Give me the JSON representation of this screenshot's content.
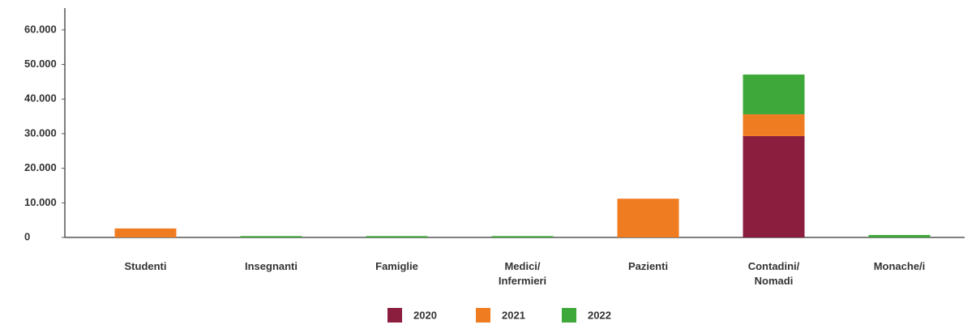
{
  "chart_data": {
    "type": "stacked_bar",
    "categories": [
      "Studenti",
      "Insegnanti",
      "Famiglie",
      "Medici/\nInfermieri",
      "Pazienti",
      "Contadini/\nNomadi",
      "Monache/i"
    ],
    "series": [
      {
        "name": "2020",
        "color": "#8b1e3f",
        "values": [
          0,
          0,
          0,
          0,
          0,
          29300,
          0
        ]
      },
      {
        "name": "2021",
        "color": "#f07c22",
        "values": [
          2600,
          0,
          0,
          0,
          11200,
          6300,
          0
        ]
      },
      {
        "name": "2022",
        "color": "#3fa83b",
        "values": [
          0,
          400,
          400,
          400,
          0,
          11500,
          700
        ]
      }
    ],
    "ylim": [
      0,
      66300
    ],
    "yticks": [
      0,
      {
        "value": 10000,
        "label": "10.000"
      },
      {
        "value": 20000,
        "label": "20.000"
      },
      {
        "value": 30000,
        "label": "30.000"
      },
      {
        "value": 40000,
        "label": "40.000"
      },
      {
        "value": 50000,
        "label": "50.000"
      },
      {
        "value": 60000,
        "label": "60.000"
      }
    ],
    "legend": "bottom"
  }
}
